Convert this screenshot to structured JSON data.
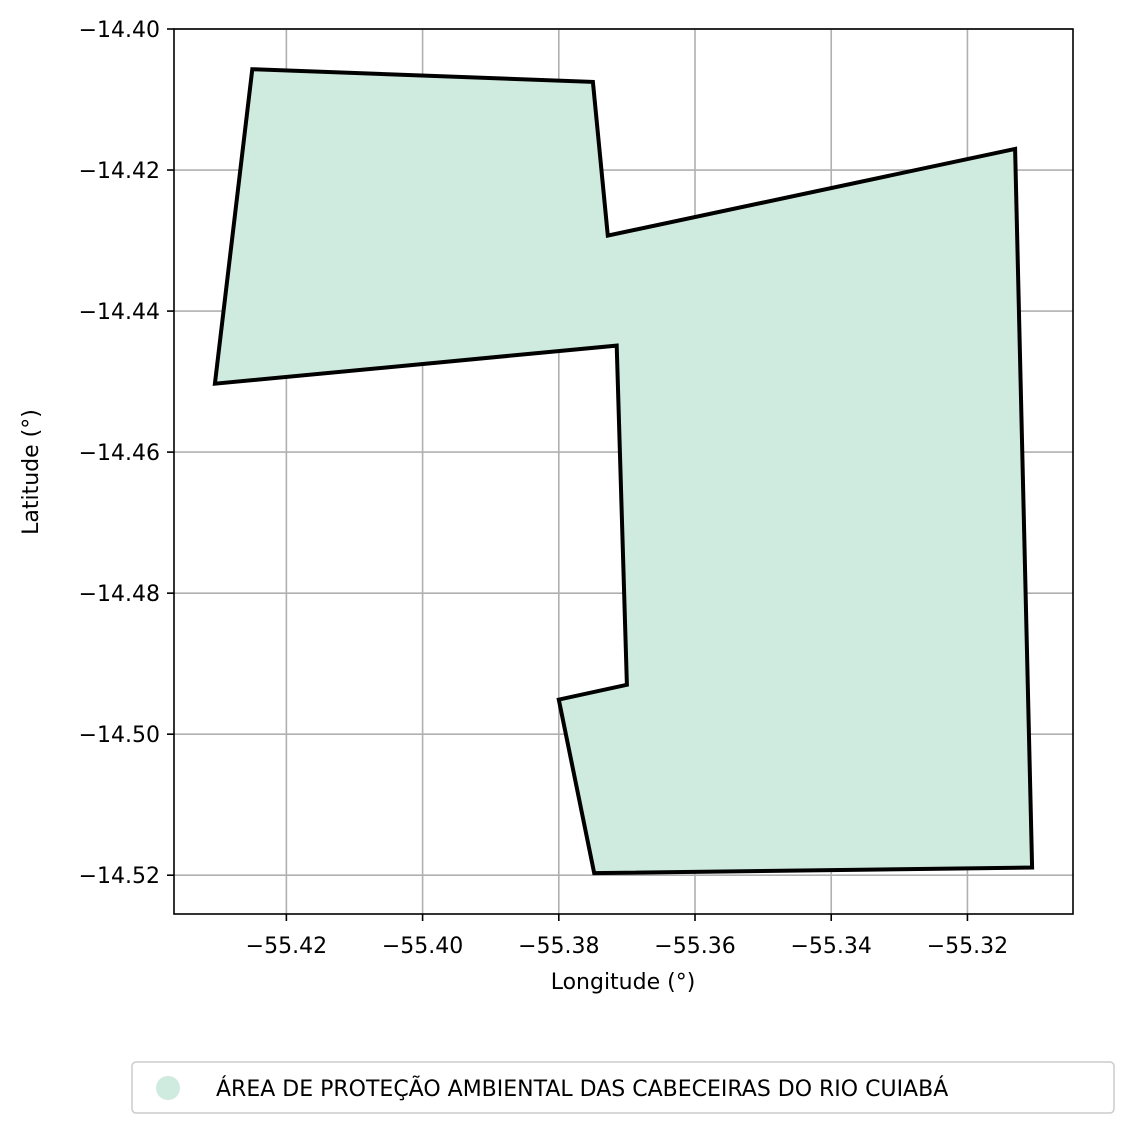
{
  "chart_data": {
    "type": "map",
    "xlabel": "Longitude (°)",
    "ylabel": "Latitude (°)",
    "xlim": [
      -55.4365,
      -55.3045
    ],
    "ylim": [
      -14.5255,
      -14.4
    ],
    "grid": true,
    "x_ticks": [
      {
        "value": -55.42,
        "label": "−55.42"
      },
      {
        "value": -55.4,
        "label": "−55.40"
      },
      {
        "value": -55.38,
        "label": "−55.38"
      },
      {
        "value": -55.36,
        "label": "−55.36"
      },
      {
        "value": -55.34,
        "label": "−55.34"
      },
      {
        "value": -55.32,
        "label": "−55.32"
      }
    ],
    "y_ticks": [
      {
        "value": -14.4,
        "label": "−14.40"
      },
      {
        "value": -14.42,
        "label": "−14.42"
      },
      {
        "value": -14.44,
        "label": "−14.44"
      },
      {
        "value": -14.46,
        "label": "−14.46"
      },
      {
        "value": -14.48,
        "label": "−14.48"
      },
      {
        "value": -14.5,
        "label": "−14.50"
      },
      {
        "value": -14.52,
        "label": "−14.52"
      }
    ],
    "polygon": {
      "name": "ÁREA DE PROTEÇÃO AMBIENTAL DAS CABECEIRAS DO RIO CUIABÁ",
      "fill_color": "#cfeadf",
      "edge_color": "#000000",
      "coordinates": [
        [
          -55.425,
          -14.4057
        ],
        [
          -55.375,
          -14.4075
        ],
        [
          -55.3728,
          -14.4293
        ],
        [
          -55.313,
          -14.417
        ],
        [
          -55.3105,
          -14.5189
        ],
        [
          -55.3748,
          -14.5197
        ],
        [
          -55.38,
          -14.4951
        ],
        [
          -55.37,
          -14.493
        ],
        [
          -55.3715,
          -14.4449
        ],
        [
          -55.4305,
          -14.4503
        ],
        [
          -55.425,
          -14.4057
        ]
      ]
    },
    "legend": {
      "placement": "bottom-center",
      "entries": [
        {
          "label": "ÁREA DE PROTEÇÃO AMBIENTAL DAS CABECEIRAS DO RIO CUIABÁ",
          "color": "#cfeadf"
        }
      ]
    }
  }
}
